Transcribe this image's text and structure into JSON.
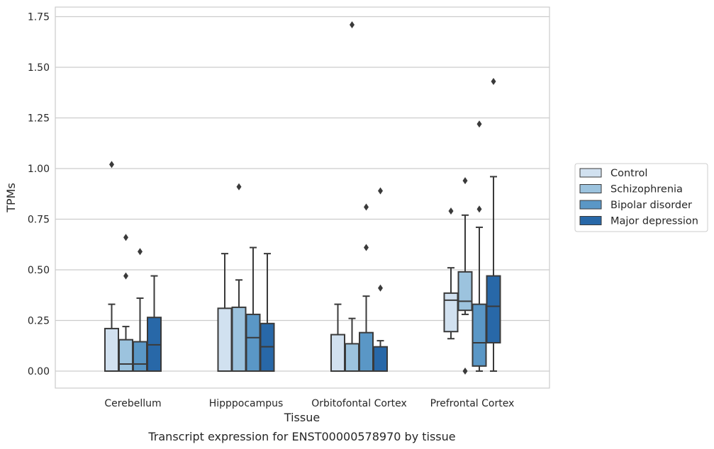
{
  "chart_data": {
    "type": "box",
    "title": "",
    "caption": "Transcript expression for ENST00000578970 by tissue",
    "xlabel": "Tissue",
    "ylabel": "TPMs",
    "ylim": [
      -0.085,
      1.8
    ],
    "yticks": [
      "0.00",
      "0.25",
      "0.50",
      "0.75",
      "1.00",
      "1.25",
      "1.50",
      "1.75"
    ],
    "ytick_values": [
      0,
      0.25,
      0.5,
      0.75,
      1.0,
      1.25,
      1.5,
      1.75
    ],
    "grid": "horizontal",
    "legend_position": "right",
    "categories": [
      "Cerebellum",
      "Hipppocampus",
      "Orbitofontal Cortex",
      "Prefrontal Cortex"
    ],
    "series": [
      {
        "name": "Control",
        "color": "#d1e1f0",
        "boxes": [
          {
            "min": 0,
            "q1": 0,
            "median": 0,
            "q3": 0.21,
            "max": 0.33,
            "outliers": [
              1.02
            ]
          },
          {
            "min": 0,
            "q1": 0,
            "median": 0,
            "q3": 0.31,
            "max": 0.58,
            "outliers": []
          },
          {
            "min": 0,
            "q1": 0,
            "median": 0,
            "q3": 0.18,
            "max": 0.33,
            "outliers": []
          },
          {
            "min": 0.16,
            "q1": 0.195,
            "median": 0.35,
            "q3": 0.385,
            "max": 0.51,
            "outliers": [
              0.79
            ]
          }
        ]
      },
      {
        "name": "Schizophrenia",
        "color": "#9cc3de",
        "boxes": [
          {
            "min": 0,
            "q1": 0,
            "median": 0.035,
            "q3": 0.155,
            "max": 0.22,
            "outliers": [
              0.47,
              0.66
            ]
          },
          {
            "min": 0,
            "q1": 0,
            "median": 0,
            "q3": 0.315,
            "max": 0.45,
            "outliers": [
              0.91
            ]
          },
          {
            "min": 0,
            "q1": 0,
            "median": 0,
            "q3": 0.135,
            "max": 0.26,
            "outliers": [
              1.71
            ]
          },
          {
            "min": 0.28,
            "q1": 0.3,
            "median": 0.345,
            "q3": 0.49,
            "max": 0.77,
            "outliers": [
              0.94,
              0
            ]
          }
        ]
      },
      {
        "name": "Bipolar disorder",
        "color": "#5a97c6",
        "boxes": [
          {
            "min": 0,
            "q1": 0,
            "median": 0.035,
            "q3": 0.145,
            "max": 0.36,
            "outliers": [
              0.59
            ]
          },
          {
            "min": 0,
            "q1": 0,
            "median": 0.165,
            "q3": 0.28,
            "max": 0.61,
            "outliers": []
          },
          {
            "min": 0,
            "q1": 0,
            "median": 0,
            "q3": 0.19,
            "max": 0.37,
            "outliers": [
              0.61,
              0.81
            ]
          },
          {
            "min": 0,
            "q1": 0.025,
            "median": 0.14,
            "q3": 0.33,
            "max": 0.71,
            "outliers": [
              0.8,
              1.22
            ]
          }
        ]
      },
      {
        "name": "Major depression",
        "color": "#2868a8",
        "boxes": [
          {
            "min": 0,
            "q1": 0,
            "median": 0.13,
            "q3": 0.265,
            "max": 0.47,
            "outliers": []
          },
          {
            "min": 0,
            "q1": 0,
            "median": 0.12,
            "q3": 0.235,
            "max": 0.58,
            "outliers": []
          },
          {
            "min": 0,
            "q1": 0,
            "median": 0,
            "q3": 0.12,
            "max": 0.15,
            "outliers": [
              0.41,
              0.89
            ]
          },
          {
            "min": 0,
            "q1": 0.14,
            "median": 0.32,
            "q3": 0.47,
            "max": 0.96,
            "outliers": [
              1.43
            ]
          }
        ]
      }
    ]
  }
}
